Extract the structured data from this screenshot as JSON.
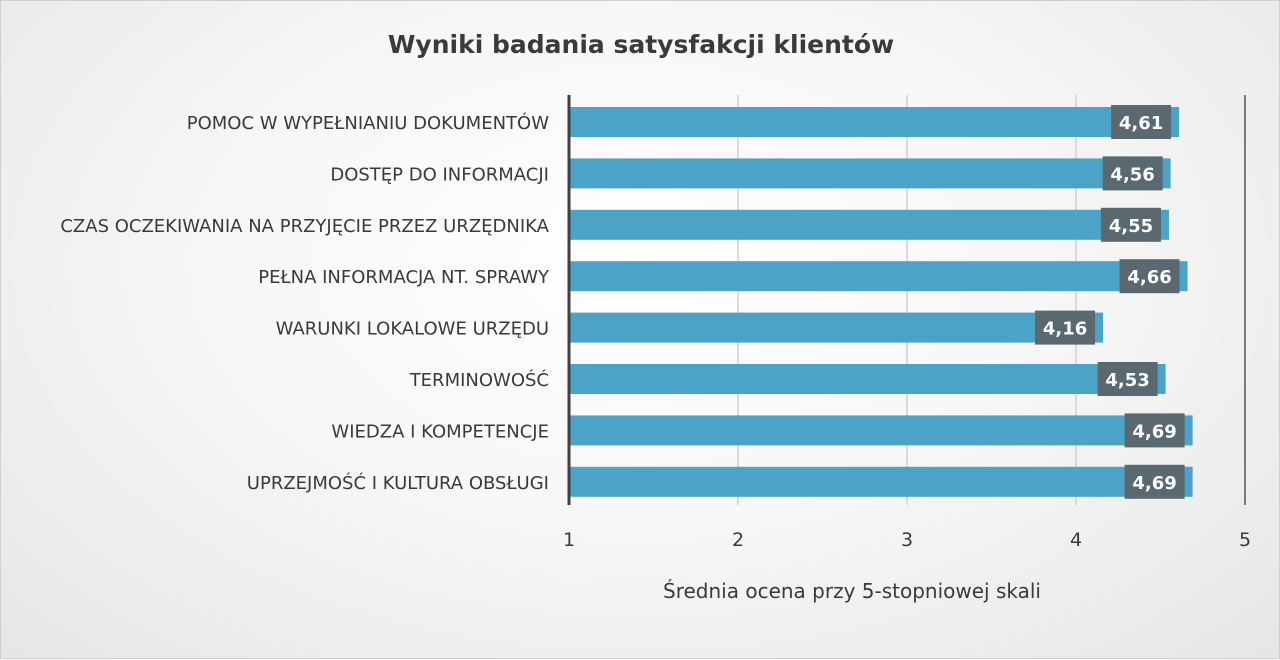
{
  "chart_data": {
    "type": "bar",
    "orientation": "horizontal",
    "title": "Wyniki badania satysfakcji klientów",
    "xlabel": "Średnia ocena przy 5-stopniowej skali",
    "ylabel": "",
    "xlim": [
      1,
      5
    ],
    "ticks": [
      1,
      2,
      3,
      4,
      5
    ],
    "tick_labels": [
      "1",
      "2",
      "3",
      "4",
      "5"
    ],
    "grid": true,
    "legend": "none",
    "categories": [
      "POMOC W WYPEŁNIANIU DOKUMENTÓW",
      "DOSTĘP DO INFORMACJI",
      "CZAS OCZEKIWANIA NA PRZYJĘCIE PRZEZ URZĘDNIKA",
      "PEŁNA INFORMACJA NT. SPRAWY",
      "WARUNKI LOKALOWE URZĘDU",
      "TERMINOWOŚĆ",
      "WIEDZA I KOMPETENCJE",
      "UPRZEJMOŚĆ I KULTURA OBSŁUGI"
    ],
    "values": [
      4.61,
      4.56,
      4.55,
      4.66,
      4.16,
      4.53,
      4.69,
      4.69
    ],
    "value_labels": [
      "4,61",
      "4,56",
      "4,55",
      "4,66",
      "4,16",
      "4,53",
      "4,69",
      "4,69"
    ],
    "colors": {
      "bar": "#4ba3c7",
      "label_box": "#5a6870",
      "axis": "#404040",
      "grid": "#d0d0d0"
    }
  }
}
